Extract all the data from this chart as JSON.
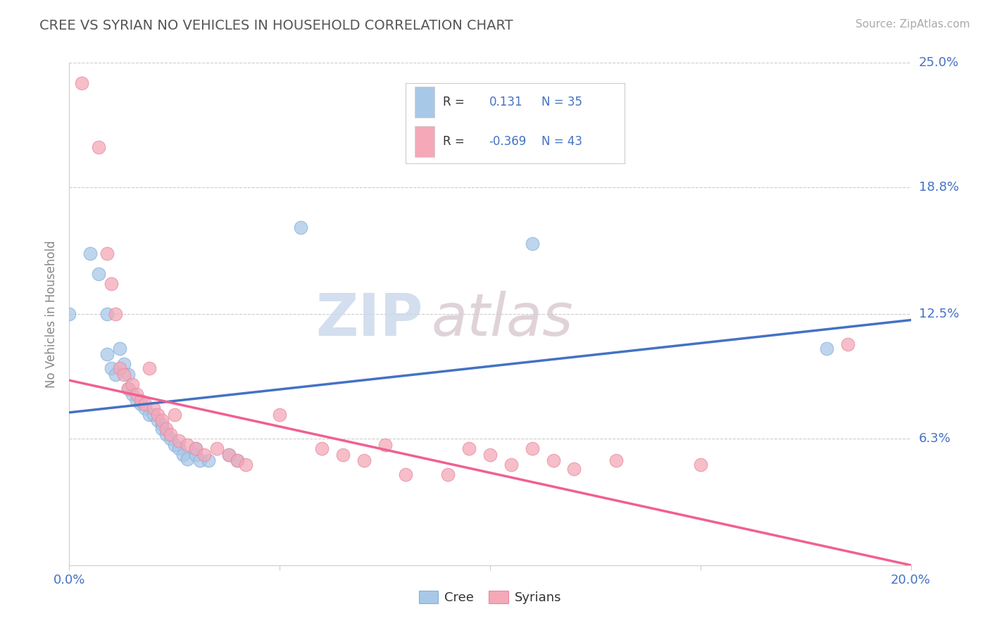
{
  "title": "CREE VS SYRIAN NO VEHICLES IN HOUSEHOLD CORRELATION CHART",
  "source": "Source: ZipAtlas.com",
  "ylabel": "No Vehicles in Household",
  "xlim": [
    0.0,
    0.2
  ],
  "ylim": [
    0.0,
    0.25
  ],
  "ytick_labels": [
    "6.3%",
    "12.5%",
    "18.8%",
    "25.0%"
  ],
  "ytick_vals": [
    0.063,
    0.125,
    0.188,
    0.25
  ],
  "cree_color": "#a8c8e8",
  "syrian_color": "#f4a8b8",
  "cree_line_color": "#4472c4",
  "syrian_line_color": "#f06090",
  "legend_r_color": "#4472c4",
  "watermark_zip": "ZIP",
  "watermark_atlas": "atlas",
  "cree_R": 0.131,
  "cree_N": 35,
  "syrian_R": -0.369,
  "syrian_N": 43,
  "cree_line": [
    0.0,
    0.076,
    0.2,
    0.122
  ],
  "syrian_line": [
    0.0,
    0.092,
    0.2,
    0.0
  ],
  "cree_points": [
    [
      0.0,
      0.125
    ],
    [
      0.005,
      0.155
    ],
    [
      0.007,
      0.145
    ],
    [
      0.009,
      0.125
    ],
    [
      0.009,
      0.105
    ],
    [
      0.01,
      0.098
    ],
    [
      0.011,
      0.095
    ],
    [
      0.012,
      0.108
    ],
    [
      0.013,
      0.1
    ],
    [
      0.014,
      0.095
    ],
    [
      0.014,
      0.088
    ],
    [
      0.015,
      0.085
    ],
    [
      0.016,
      0.082
    ],
    [
      0.017,
      0.08
    ],
    [
      0.018,
      0.078
    ],
    [
      0.019,
      0.075
    ],
    [
      0.02,
      0.075
    ],
    [
      0.021,
      0.072
    ],
    [
      0.022,
      0.07
    ],
    [
      0.022,
      0.068
    ],
    [
      0.023,
      0.065
    ],
    [
      0.024,
      0.063
    ],
    [
      0.025,
      0.06
    ],
    [
      0.026,
      0.058
    ],
    [
      0.027,
      0.055
    ],
    [
      0.028,
      0.053
    ],
    [
      0.03,
      0.058
    ],
    [
      0.03,
      0.055
    ],
    [
      0.031,
      0.052
    ],
    [
      0.033,
      0.052
    ],
    [
      0.038,
      0.055
    ],
    [
      0.04,
      0.052
    ],
    [
      0.055,
      0.168
    ],
    [
      0.11,
      0.16
    ],
    [
      0.18,
      0.108
    ]
  ],
  "syrian_points": [
    [
      0.003,
      0.24
    ],
    [
      0.007,
      0.208
    ],
    [
      0.009,
      0.155
    ],
    [
      0.01,
      0.14
    ],
    [
      0.011,
      0.125
    ],
    [
      0.012,
      0.098
    ],
    [
      0.013,
      0.095
    ],
    [
      0.014,
      0.088
    ],
    [
      0.015,
      0.09
    ],
    [
      0.016,
      0.085
    ],
    [
      0.017,
      0.082
    ],
    [
      0.018,
      0.08
    ],
    [
      0.019,
      0.098
    ],
    [
      0.02,
      0.078
    ],
    [
      0.021,
      0.075
    ],
    [
      0.022,
      0.072
    ],
    [
      0.023,
      0.068
    ],
    [
      0.024,
      0.065
    ],
    [
      0.025,
      0.075
    ],
    [
      0.026,
      0.062
    ],
    [
      0.028,
      0.06
    ],
    [
      0.03,
      0.058
    ],
    [
      0.032,
      0.055
    ],
    [
      0.035,
      0.058
    ],
    [
      0.038,
      0.055
    ],
    [
      0.04,
      0.052
    ],
    [
      0.042,
      0.05
    ],
    [
      0.05,
      0.075
    ],
    [
      0.06,
      0.058
    ],
    [
      0.065,
      0.055
    ],
    [
      0.07,
      0.052
    ],
    [
      0.075,
      0.06
    ],
    [
      0.08,
      0.045
    ],
    [
      0.09,
      0.045
    ],
    [
      0.095,
      0.058
    ],
    [
      0.1,
      0.055
    ],
    [
      0.105,
      0.05
    ],
    [
      0.11,
      0.058
    ],
    [
      0.115,
      0.052
    ],
    [
      0.12,
      0.048
    ],
    [
      0.13,
      0.052
    ],
    [
      0.15,
      0.05
    ],
    [
      0.185,
      0.11
    ]
  ],
  "bg_color": "#ffffff",
  "grid_color": "#cccccc",
  "title_color": "#555555",
  "axis_label_color": "#888888",
  "tick_label_color": "#4472c4"
}
